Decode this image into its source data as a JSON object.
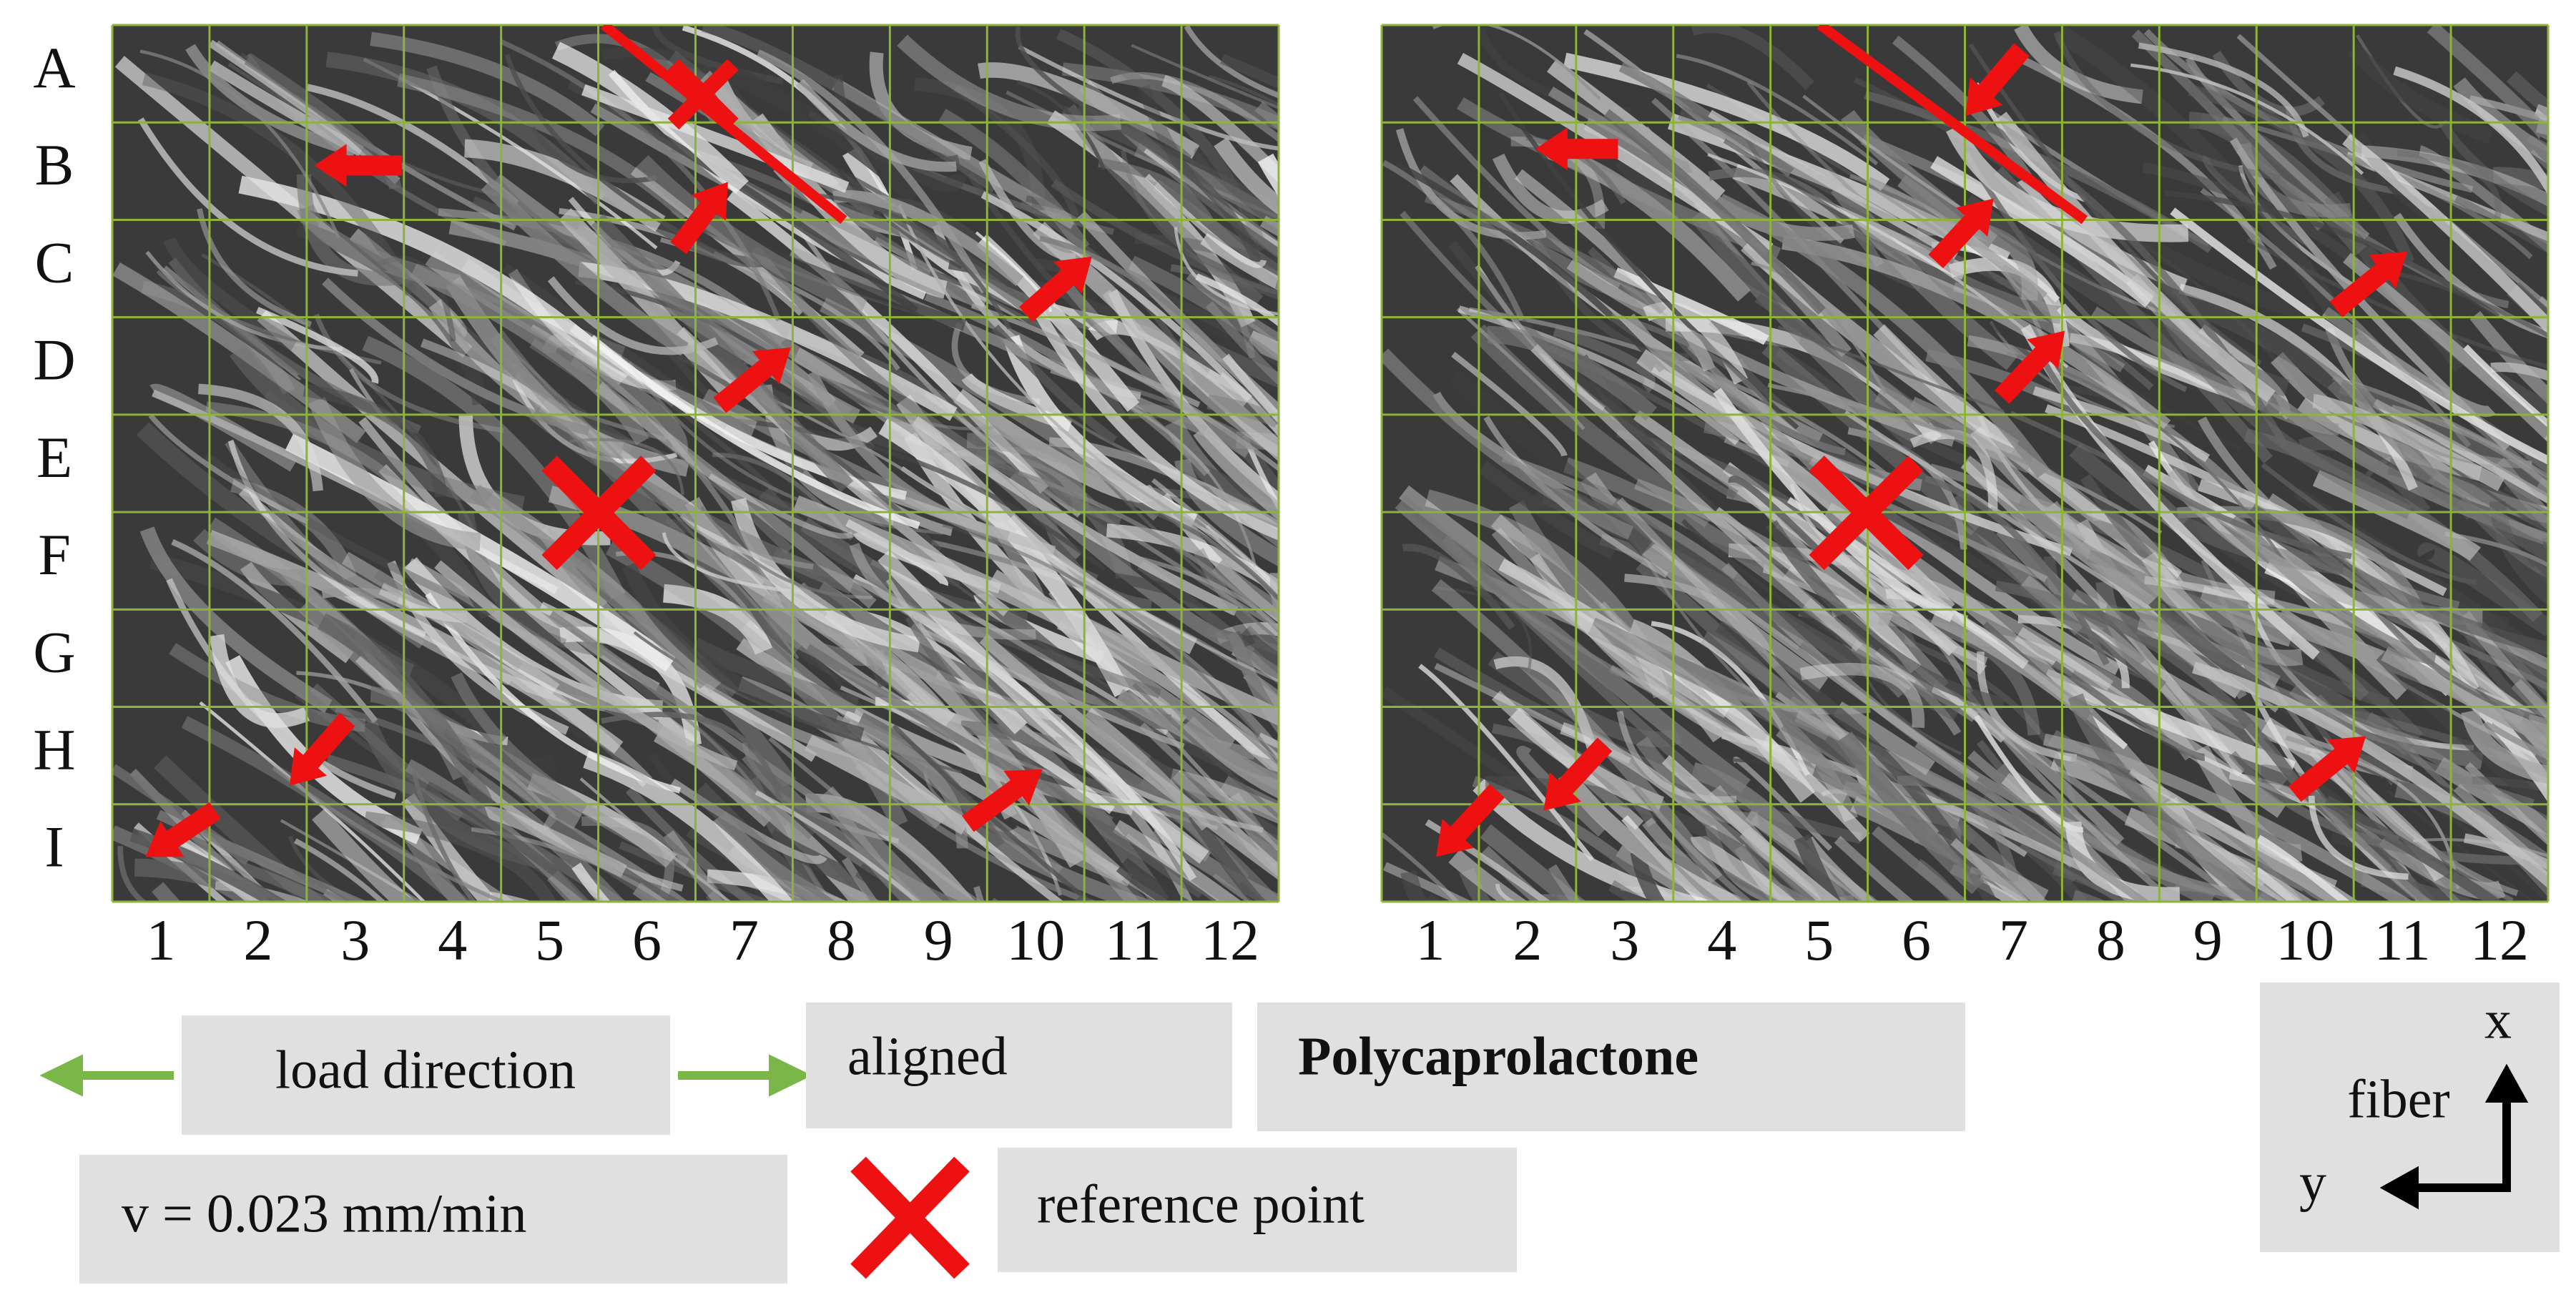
{
  "grid": {
    "rows": [
      "A",
      "B",
      "C",
      "D",
      "E",
      "F",
      "G",
      "H",
      "I"
    ],
    "columns": [
      "1",
      "2",
      "3",
      "4",
      "5",
      "6",
      "7",
      "8",
      "9",
      "10",
      "11",
      "12"
    ]
  },
  "legend": {
    "load_direction": "load direction",
    "alignment": "aligned",
    "material": "Polycaprolactone",
    "speed": "v = 0.023 mm/min",
    "reference": "reference point"
  },
  "axes": {
    "x": "x",
    "y": "y",
    "fiber": "fiber"
  }
}
